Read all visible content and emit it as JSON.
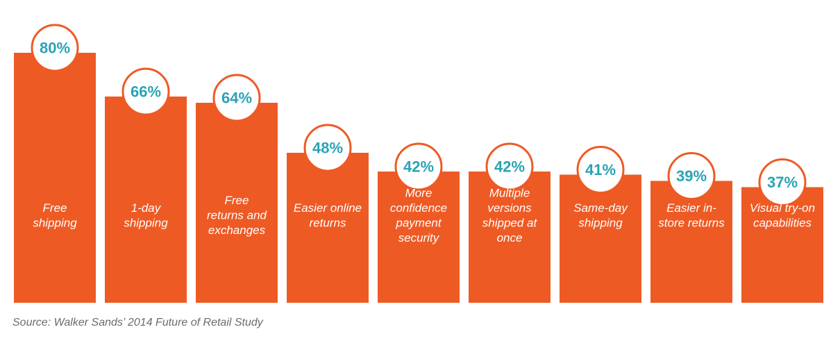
{
  "chart_data": {
    "type": "bar",
    "categories": [
      [
        "Free",
        "shipping"
      ],
      [
        "1-day",
        "shipping"
      ],
      [
        "Free",
        "returns and",
        "exchanges"
      ],
      [
        "Easier online",
        "returns"
      ],
      [
        "More",
        "confidence",
        "payment",
        "security"
      ],
      [
        "Multiple",
        "versions",
        "shipped at",
        "once"
      ],
      [
        "Same-day",
        "shipping"
      ],
      [
        "Easier in-",
        "store returns"
      ],
      [
        "Visual try-on",
        "capabilities"
      ]
    ],
    "values": [
      80,
      66,
      64,
      48,
      42,
      42,
      41,
      39,
      37
    ],
    "value_labels": [
      "80%",
      "66%",
      "64%",
      "48%",
      "42%",
      "42%",
      "41%",
      "39%",
      "37%"
    ],
    "ylim": [
      0,
      80
    ],
    "grid": false,
    "legend": "none",
    "title": "",
    "xlabel": "",
    "ylabel": ""
  },
  "colors": {
    "bar": "#ee5a24",
    "value_text": "#2aa3b5",
    "circle_fill": "#ffffff"
  },
  "source": "Source: Walker Sands’ 2014 Future of Retail Study"
}
